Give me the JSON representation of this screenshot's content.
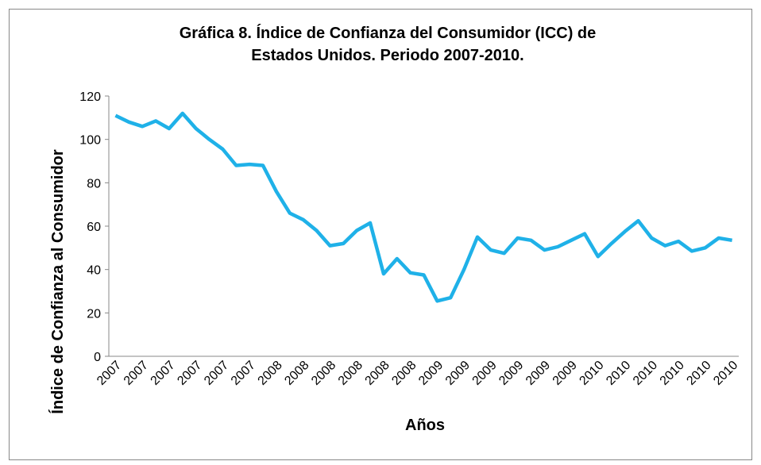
{
  "chart_data": {
    "type": "line",
    "title": [
      "Gráfica 8. Índice de Confianza del Consumidor (ICC) de",
      "Estados Unidos. Periodo 2007-2010."
    ],
    "x_label": "Años",
    "y_label": "Índice de Confianza al Consumidor",
    "categories": [
      "2007",
      null,
      "2007",
      null,
      "2007",
      null,
      "2007",
      null,
      "2007",
      null,
      "2007",
      null,
      "2008",
      null,
      "2008",
      null,
      "2008",
      null,
      "2008",
      null,
      "2008",
      null,
      "2008",
      null,
      "2009",
      null,
      "2009",
      null,
      "2009",
      null,
      "2009",
      null,
      "2009",
      null,
      "2009",
      null,
      "2010",
      null,
      "2010",
      null,
      "2010",
      null,
      "2010",
      null,
      "2010",
      null,
      "2010"
    ],
    "series": [
      {
        "name": "ICC",
        "color": "#1fb1e8",
        "values": [
          111,
          108,
          106,
          108.5,
          105,
          112,
          105,
          100,
          95.5,
          88,
          88.5,
          88,
          76,
          66,
          63,
          58,
          51,
          52,
          58,
          61.5,
          38,
          45,
          38.5,
          37.5,
          25.5,
          27,
          40,
          55,
          49,
          47.5,
          54.5,
          53.5,
          49,
          50.5,
          53.5,
          56.5,
          46,
          52,
          57.5,
          62.5,
          54.5,
          51,
          53,
          48.5,
          50,
          54.5,
          53.5
        ]
      }
    ],
    "ylim": [
      0,
      120
    ],
    "yticks": [
      0,
      20,
      40,
      60,
      80,
      100,
      120
    ]
  }
}
